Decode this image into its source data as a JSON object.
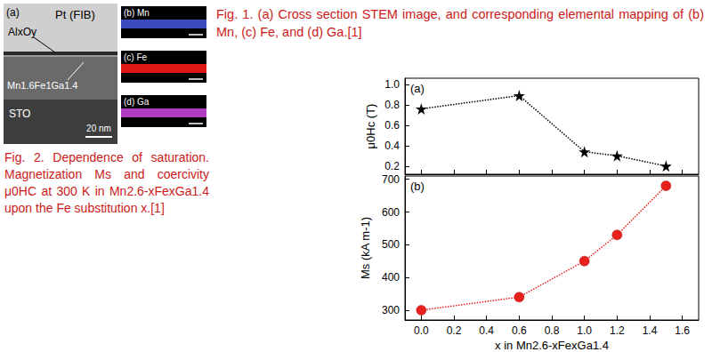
{
  "figure1": {
    "panel_a": {
      "label": "(a)",
      "top_layer": "Pt (FIB)",
      "cap_layer": "AlxOy",
      "film": "Mn1.6Fe1Ga1.4",
      "substrate": "STO",
      "scale_bar": "20 nm"
    },
    "maps": [
      {
        "label": "(b) Mn",
        "color": "#3a4cc0"
      },
      {
        "label": "(c) Fe",
        "color": "#e01616"
      },
      {
        "label": "(d) Ga",
        "color": "#b23cc0"
      }
    ]
  },
  "fig1_caption": "Fig. 1. (a) Cross section STEM image, and corresponding elemental mapping of (b) Mn, (c) Fe, and (d) Ga.[1]",
  "fig2_caption": "Fig. 2. Dependence of saturation. Magnetization Ms and coercivity μ0HC at 300 K in Mn2.6-xFexGa1.4 upon the Fe substitution x.[1]",
  "chart_data": [
    {
      "type": "line",
      "annotations": [
        "(a)"
      ],
      "ylabel": "μ0Hc (T)",
      "x": [
        0,
        0.6,
        1.0,
        1.2,
        1.5
      ],
      "values": [
        0.76,
        0.89,
        0.34,
        0.3,
        0.2
      ],
      "color": "#000000",
      "marker": "star",
      "line_style": "dotted",
      "xlim": [
        -0.1,
        1.7
      ],
      "xticks": [
        {
          "value": 0,
          "label": "0.0"
        },
        0.2,
        0.4,
        0.6,
        0.8,
        {
          "value": 1,
          "label": "1.0"
        },
        1.2,
        1.4,
        1.6
      ],
      "ylim": [
        0.12,
        1.06
      ],
      "yticks": [
        0.2,
        0.4,
        0.6,
        0.8,
        {
          "value": 1,
          "label": "1.0"
        }
      ],
      "tick_labels": "y",
      "grid": false
    },
    {
      "type": "line",
      "annotations": [
        "(b)"
      ],
      "xlabel": "x in Mn2.6-xFexGa1.4",
      "ylabel": "Ms (kA m-1)",
      "x": [
        0,
        0.6,
        1.0,
        1.2,
        1.5
      ],
      "values": [
        300,
        340,
        450,
        530,
        680
      ],
      "color": "#e8211d",
      "marker": "circle",
      "line_style": "dotted",
      "xlim": [
        -0.1,
        1.7
      ],
      "xticks": [
        {
          "value": 0,
          "label": "0.0"
        },
        0.2,
        0.4,
        0.6,
        0.8,
        {
          "value": 1,
          "label": "1.0"
        },
        1.2,
        1.4,
        1.6
      ],
      "ylim": [
        270,
        710
      ],
      "yticks": [
        300,
        400,
        500,
        600,
        700
      ],
      "grid": false
    }
  ]
}
